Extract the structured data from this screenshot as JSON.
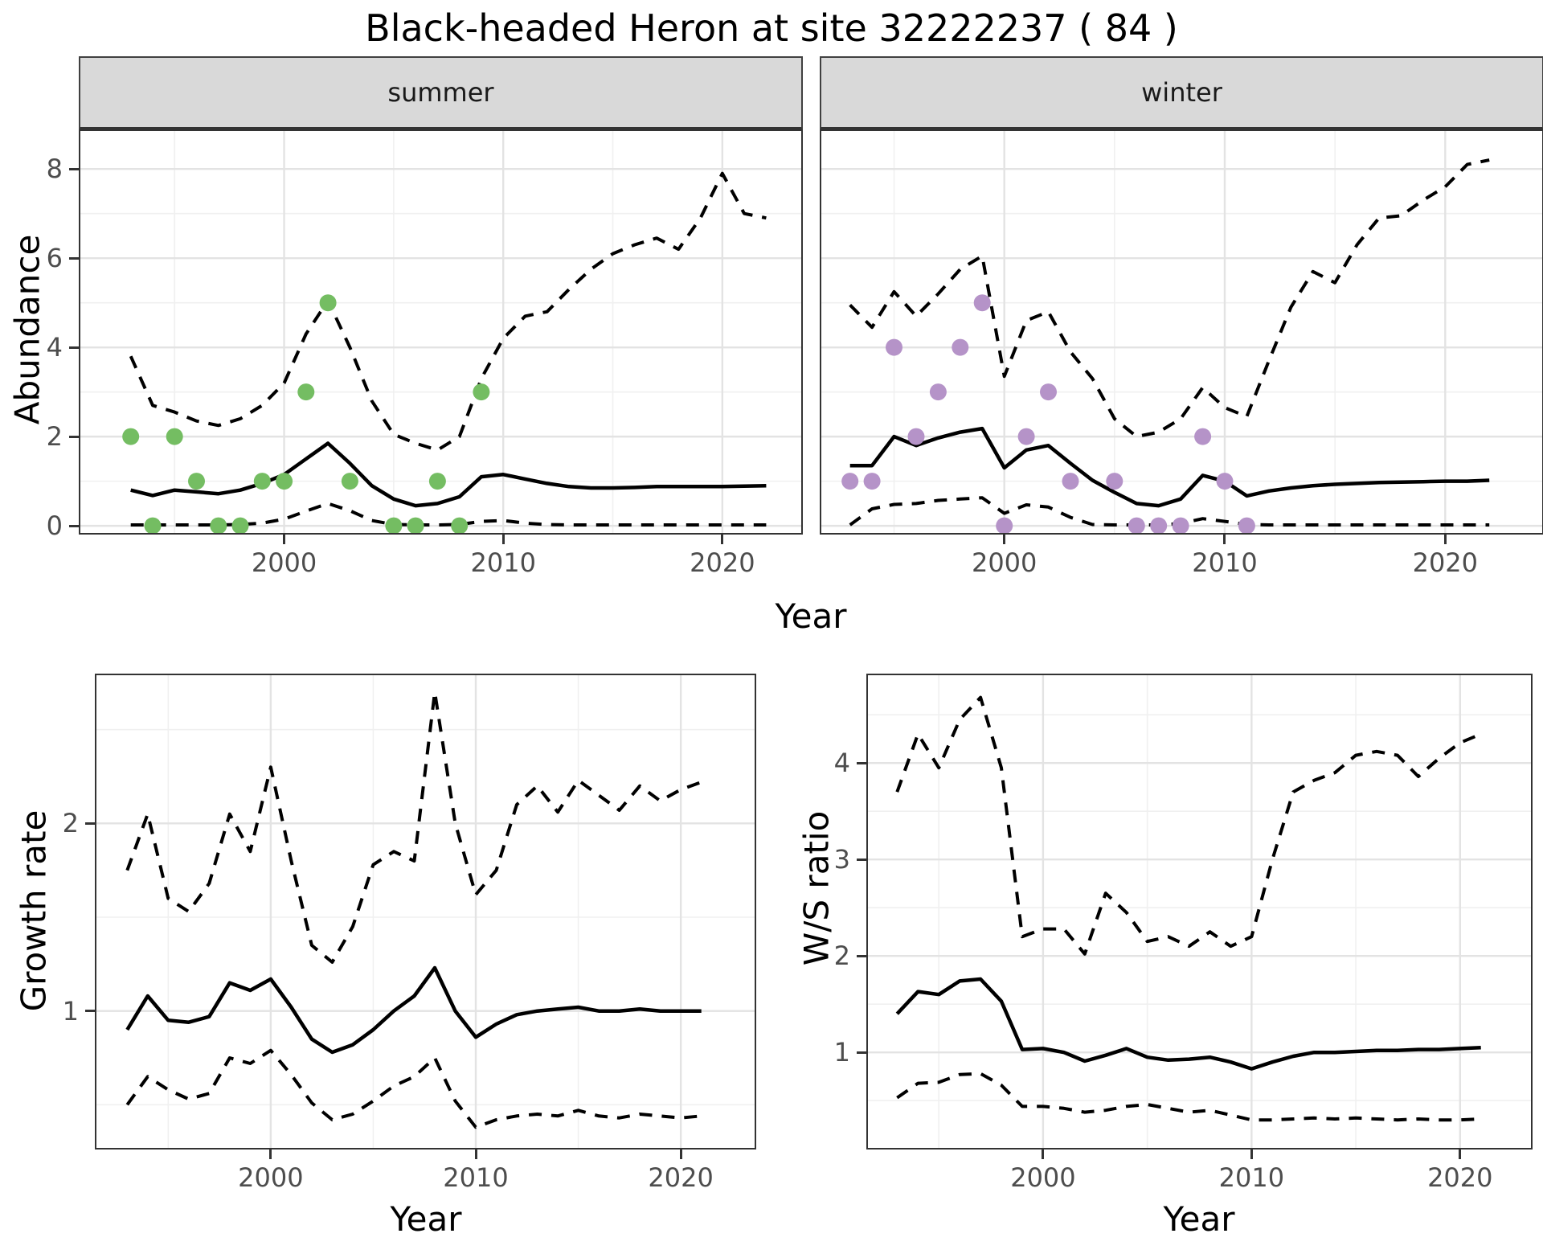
{
  "title": "Black-headed Heron at site 32222237 ( 84 )",
  "axis": {
    "x_label": "Year",
    "abundance_label": "Abundance",
    "growth_label": "Growth rate",
    "ws_label": "W/S ratio"
  },
  "facets": {
    "summer_label": "summer",
    "winter_label": "winter"
  },
  "colors": {
    "summer_points": "#74BD62",
    "winter_points": "#B593C8",
    "line": "#000000",
    "grid_major": "#E3E3E3",
    "grid_minor": "#F0F0F0",
    "strip_bg": "#D9D9D9",
    "panel_border": "#333333",
    "tick_label": "#4D4D4D"
  },
  "chart_data": [
    {
      "id": "summer",
      "type": "line",
      "facet": "summer",
      "xlabel": "Year",
      "ylabel": "Abundance",
      "xlim": [
        1990.7,
        2023.6
      ],
      "ylim": [
        -0.16,
        8.85
      ],
      "x_ticks": [
        2000,
        2010,
        2020
      ],
      "x_minor": [
        1995,
        2005,
        2015
      ],
      "y_ticks": [
        0,
        2,
        4,
        6,
        8
      ],
      "y_minor": [
        1,
        3,
        5,
        7
      ],
      "show_y_tick_labels": true,
      "years": [
        1993,
        1994,
        1995,
        1996,
        1997,
        1998,
        1999,
        2000,
        2001,
        2002,
        2003,
        2004,
        2005,
        2006,
        2007,
        2008,
        2009,
        2010,
        2011,
        2012,
        2013,
        2014,
        2015,
        2016,
        2017,
        2018,
        2019,
        2020,
        2021,
        2022
      ],
      "median": [
        0.8,
        0.68,
        0.8,
        0.76,
        0.72,
        0.8,
        0.95,
        1.15,
        1.5,
        1.85,
        1.4,
        0.9,
        0.6,
        0.45,
        0.5,
        0.65,
        1.1,
        1.15,
        1.05,
        0.95,
        0.88,
        0.85,
        0.85,
        0.86,
        0.88,
        0.88,
        0.88,
        0.88,
        0.89,
        0.9
      ],
      "upper": [
        3.8,
        2.7,
        2.55,
        2.35,
        2.25,
        2.4,
        2.7,
        3.2,
        4.3,
        5.05,
        4.0,
        2.8,
        2.05,
        1.85,
        1.7,
        2.0,
        3.3,
        4.2,
        4.7,
        4.8,
        5.3,
        5.75,
        6.1,
        6.3,
        6.45,
        6.2,
        6.9,
        7.9,
        7.0,
        6.9
      ],
      "lower": [
        0.02,
        0.02,
        0.02,
        0.02,
        0.02,
        0.03,
        0.06,
        0.15,
        0.33,
        0.5,
        0.34,
        0.12,
        0.03,
        0.02,
        0.02,
        0.03,
        0.1,
        0.12,
        0.06,
        0.03,
        0.02,
        0.02,
        0.02,
        0.02,
        0.02,
        0.02,
        0.02,
        0.02,
        0.02,
        0.02
      ],
      "points": [
        [
          1993,
          2
        ],
        [
          1994,
          0
        ],
        [
          1995,
          2
        ],
        [
          1996,
          1
        ],
        [
          1997,
          0
        ],
        [
          1998,
          0
        ],
        [
          1999,
          1
        ],
        [
          2000,
          1
        ],
        [
          2001,
          3
        ],
        [
          2002,
          5
        ],
        [
          2003,
          1
        ],
        [
          2005,
          0
        ],
        [
          2006,
          0
        ],
        [
          2007,
          1
        ],
        [
          2008,
          0
        ],
        [
          2009,
          3
        ]
      ],
      "point_color": "#74BD62"
    },
    {
      "id": "winter",
      "type": "line",
      "facet": "winter",
      "xlabel": "Year",
      "ylabel": "Abundance",
      "xlim": [
        1991.7,
        2024.4
      ],
      "ylim": [
        -0.16,
        8.85
      ],
      "x_ticks": [
        2000,
        2010,
        2020
      ],
      "x_minor": [
        1995,
        2005,
        2015
      ],
      "y_ticks": [
        0,
        2,
        4,
        6,
        8
      ],
      "y_minor": [
        1,
        3,
        5,
        7
      ],
      "show_y_tick_labels": false,
      "years": [
        1993,
        1994,
        1995,
        1996,
        1997,
        1998,
        1999,
        2000,
        2001,
        2002,
        2003,
        2004,
        2005,
        2006,
        2007,
        2008,
        2009,
        2010,
        2011,
        2012,
        2013,
        2014,
        2015,
        2016,
        2017,
        2018,
        2019,
        2020,
        2021,
        2022
      ],
      "median": [
        1.35,
        1.35,
        2.0,
        1.8,
        1.97,
        2.1,
        2.18,
        1.3,
        1.7,
        1.8,
        1.4,
        1.02,
        0.75,
        0.5,
        0.45,
        0.6,
        1.13,
        1.0,
        0.67,
        0.78,
        0.85,
        0.9,
        0.93,
        0.95,
        0.97,
        0.98,
        0.99,
        1.0,
        1.0,
        1.02
      ],
      "upper": [
        4.95,
        4.45,
        5.25,
        4.7,
        5.2,
        5.75,
        6.05,
        3.35,
        4.6,
        4.8,
        3.9,
        3.3,
        2.4,
        2.0,
        2.1,
        2.4,
        3.1,
        2.65,
        2.45,
        3.7,
        4.9,
        5.7,
        5.45,
        6.3,
        6.9,
        6.95,
        7.3,
        7.6,
        8.1,
        8.2
      ],
      "lower": [
        0.02,
        0.38,
        0.48,
        0.5,
        0.57,
        0.6,
        0.63,
        0.28,
        0.47,
        0.42,
        0.19,
        0.03,
        0.02,
        0.02,
        0.02,
        0.05,
        0.16,
        0.1,
        0.03,
        0.02,
        0.02,
        0.02,
        0.02,
        0.02,
        0.02,
        0.02,
        0.02,
        0.02,
        0.02,
        0.02
      ],
      "points": [
        [
          1993,
          1
        ],
        [
          1994,
          1
        ],
        [
          1995,
          4
        ],
        [
          1996,
          2
        ],
        [
          1997,
          3
        ],
        [
          1998,
          4
        ],
        [
          1999,
          5
        ],
        [
          2000,
          0
        ],
        [
          2001,
          2
        ],
        [
          2002,
          3
        ],
        [
          2003,
          1
        ],
        [
          2005,
          1
        ],
        [
          2006,
          0
        ],
        [
          2007,
          0
        ],
        [
          2008,
          0
        ],
        [
          2009,
          2
        ],
        [
          2010,
          1
        ],
        [
          2011,
          0
        ]
      ],
      "point_color": "#B593C8"
    },
    {
      "id": "growth",
      "type": "line",
      "facet": "",
      "xlabel": "Year",
      "ylabel": "Growth rate",
      "xlim": [
        1991.5,
        2023.6
      ],
      "ylim": [
        0.27,
        2.79
      ],
      "x_ticks": [
        2000,
        2010,
        2020
      ],
      "x_minor": [
        1995,
        2005,
        2015
      ],
      "y_ticks": [
        1,
        2
      ],
      "y_minor": [
        0.5,
        1.5,
        2.5
      ],
      "show_y_tick_labels": true,
      "years": [
        1993,
        1994,
        1995,
        1996,
        1997,
        1998,
        1999,
        2000,
        2001,
        2002,
        2003,
        2004,
        2005,
        2006,
        2007,
        2008,
        2009,
        2010,
        2011,
        2012,
        2013,
        2014,
        2015,
        2016,
        2017,
        2018,
        2019,
        2020,
        2021
      ],
      "median": [
        0.9,
        1.08,
        0.95,
        0.94,
        0.97,
        1.15,
        1.11,
        1.17,
        1.02,
        0.85,
        0.78,
        0.82,
        0.9,
        1.0,
        1.08,
        1.23,
        1.0,
        0.86,
        0.93,
        0.98,
        1.0,
        1.01,
        1.02,
        1.0,
        1.0,
        1.01,
        1.0,
        1.0,
        1.0
      ],
      "upper": [
        1.75,
        2.05,
        1.6,
        1.53,
        1.68,
        2.05,
        1.85,
        2.3,
        1.8,
        1.35,
        1.26,
        1.45,
        1.78,
        1.85,
        1.8,
        2.7,
        2.0,
        1.62,
        1.75,
        2.1,
        2.2,
        2.06,
        2.23,
        2.15,
        2.07,
        2.2,
        2.12,
        2.18,
        2.22
      ],
      "lower": [
        0.5,
        0.65,
        0.58,
        0.53,
        0.56,
        0.75,
        0.72,
        0.79,
        0.66,
        0.51,
        0.42,
        0.45,
        0.52,
        0.6,
        0.65,
        0.75,
        0.52,
        0.38,
        0.42,
        0.44,
        0.45,
        0.44,
        0.47,
        0.44,
        0.43,
        0.45,
        0.44,
        0.43,
        0.44
      ],
      "points": [],
      "point_color": "#000000"
    },
    {
      "id": "ws",
      "type": "line",
      "facet": "",
      "xlabel": "Year",
      "ylabel": "W/S ratio",
      "xlim": [
        1991.6,
        2023.4
      ],
      "ylim": [
        0.01,
        4.91
      ],
      "x_ticks": [
        2000,
        2010,
        2020
      ],
      "x_minor": [
        1995,
        2005,
        2015
      ],
      "y_ticks": [
        1,
        2,
        3,
        4
      ],
      "y_minor": [
        0.5,
        1.5,
        2.5,
        3.5,
        4.5
      ],
      "show_y_tick_labels": true,
      "years": [
        1993,
        1994,
        1995,
        1996,
        1997,
        1998,
        1999,
        2000,
        2001,
        2002,
        2003,
        2004,
        2005,
        2006,
        2007,
        2008,
        2009,
        2010,
        2011,
        2012,
        2013,
        2014,
        2015,
        2016,
        2017,
        2018,
        2019,
        2020,
        2021
      ],
      "median": [
        1.4,
        1.63,
        1.6,
        1.74,
        1.76,
        1.53,
        1.03,
        1.04,
        1.0,
        0.91,
        0.97,
        1.04,
        0.95,
        0.92,
        0.93,
        0.95,
        0.9,
        0.83,
        0.9,
        0.96,
        1.0,
        1.0,
        1.01,
        1.02,
        1.02,
        1.03,
        1.03,
        1.04,
        1.05
      ],
      "upper": [
        3.7,
        4.3,
        3.95,
        4.45,
        4.68,
        3.95,
        2.2,
        2.28,
        2.28,
        2.02,
        2.65,
        2.45,
        2.15,
        2.2,
        2.1,
        2.25,
        2.1,
        2.2,
        3.0,
        3.7,
        3.82,
        3.9,
        4.08,
        4.12,
        4.08,
        3.86,
        4.05,
        4.21,
        4.3
      ],
      "lower": [
        0.53,
        0.68,
        0.69,
        0.77,
        0.78,
        0.66,
        0.44,
        0.44,
        0.42,
        0.38,
        0.4,
        0.44,
        0.46,
        0.42,
        0.38,
        0.4,
        0.35,
        0.3,
        0.3,
        0.31,
        0.32,
        0.31,
        0.32,
        0.31,
        0.3,
        0.31,
        0.3,
        0.3,
        0.31
      ],
      "points": [],
      "point_color": "#000000"
    }
  ]
}
